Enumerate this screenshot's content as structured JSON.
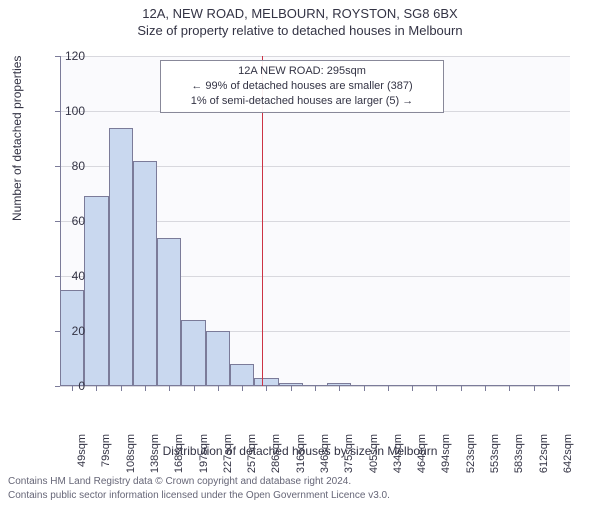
{
  "header": {
    "title": "12A, NEW ROAD, MELBOURN, ROYSTON, SG8 6BX",
    "subtitle": "Size of property relative to detached houses in Melbourn"
  },
  "chart": {
    "type": "histogram",
    "plot_bg": "#fafafd",
    "grid_color": "#d8d8de",
    "axis_color": "#7b7b99",
    "bar_fill": "#c9d8ef",
    "bar_border": "#7b7b99",
    "marker_color": "#cc3344",
    "ylim": [
      0,
      120
    ],
    "ytick_step": 20,
    "categories": [
      "49sqm",
      "79sqm",
      "108sqm",
      "138sqm",
      "168sqm",
      "197sqm",
      "227sqm",
      "257sqm",
      "286sqm",
      "316sqm",
      "346sqm",
      "375sqm",
      "405sqm",
      "434sqm",
      "464sqm",
      "494sqm",
      "523sqm",
      "553sqm",
      "583sqm",
      "612sqm",
      "642sqm"
    ],
    "values": [
      35,
      69,
      94,
      82,
      54,
      24,
      20,
      8,
      3,
      1,
      0,
      1,
      0,
      0,
      0,
      0,
      0,
      0,
      0,
      0,
      0
    ],
    "marker_index": 8,
    "ylabel": "Number of detached properties",
    "xlabel": "Distribution of detached houses by size in Melbourn",
    "label_fontsize": 12
  },
  "annotation": {
    "line1": "12A NEW ROAD: 295sqm",
    "line2": "← 99% of detached houses are smaller (387)",
    "line3": "1% of semi-detached houses are larger (5) →"
  },
  "footer": {
    "line1": "Contains HM Land Registry data © Crown copyright and database right 2024.",
    "line2": "Contains public sector information licensed under the Open Government Licence v3.0."
  }
}
